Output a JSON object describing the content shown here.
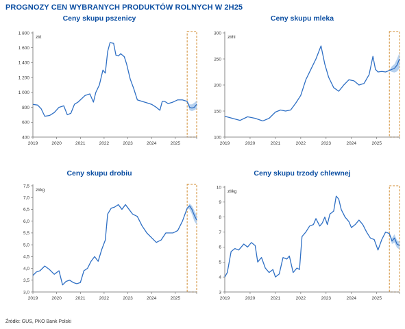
{
  "page": {
    "title": "PROGNOZY CEN WYBRANYCH PRODUKTÓW ROLNYCH W 2H25",
    "source": "Źródło: GUS, PKO Bank Polski"
  },
  "colors": {
    "line": "#2e6fc4",
    "band": "#a9c9ec",
    "forecast_box": "#d08a2e",
    "title": "#0b4ea2",
    "axis": "#666666"
  },
  "chart_data": [
    {
      "type": "line",
      "title": "Ceny skupu pszenicy",
      "unit": "zł/t",
      "xlim": [
        2019.0,
        2025.9
      ],
      "xticks": [
        2019,
        2020,
        2021,
        2022,
        2023,
        2024,
        2025
      ],
      "ylim": [
        400,
        1800
      ],
      "yticks": [
        400,
        600,
        800,
        1000,
        1200,
        1400,
        1600,
        1800
      ],
      "ytick_labels": [
        "400",
        "600",
        "800",
        "1 000",
        "1 200",
        "1 400",
        "1 600",
        "1 800"
      ],
      "forecast_range": [
        2025.5,
        2025.9
      ],
      "x": [
        2019.0,
        2019.2,
        2019.35,
        2019.5,
        2019.7,
        2019.9,
        2020.1,
        2020.3,
        2020.45,
        2020.6,
        2020.75,
        2020.9,
        2021.0,
        2021.2,
        2021.4,
        2021.55,
        2021.65,
        2021.8,
        2021.95,
        2022.05,
        2022.15,
        2022.25,
        2022.4,
        2022.5,
        2022.6,
        2022.7,
        2022.85,
        2022.95,
        2023.1,
        2023.25,
        2023.4,
        2023.6,
        2023.8,
        2024.0,
        2024.2,
        2024.35,
        2024.45,
        2024.55,
        2024.7,
        2024.9,
        2025.1,
        2025.3,
        2025.5
      ],
      "y": [
        840,
        830,
        780,
        680,
        690,
        730,
        800,
        820,
        700,
        720,
        840,
        870,
        900,
        960,
        980,
        870,
        1000,
        1100,
        1300,
        1260,
        1550,
        1670,
        1660,
        1500,
        1490,
        1520,
        1480,
        1380,
        1180,
        1050,
        900,
        880,
        860,
        840,
        800,
        760,
        880,
        880,
        850,
        870,
        900,
        900,
        880
      ],
      "forecast_x": [
        2025.5,
        2025.6,
        2025.7,
        2025.8,
        2025.9
      ],
      "forecast_y": [
        880,
        800,
        790,
        800,
        840
      ],
      "forecast_low": [
        880,
        760,
        750,
        760,
        780
      ],
      "forecast_high": [
        880,
        840,
        840,
        860,
        890
      ]
    },
    {
      "type": "line",
      "title": "Ceny skupu mleka",
      "unit": "zł/hl",
      "xlim": [
        2019.0,
        2025.9
      ],
      "xticks": [
        2019,
        2020,
        2021,
        2022,
        2023,
        2024,
        2025
      ],
      "ylim": [
        100,
        300
      ],
      "yticks": [
        100,
        150,
        200,
        250,
        300
      ],
      "ytick_labels": [
        "100",
        "150",
        "200",
        "250",
        "300"
      ],
      "forecast_range": [
        2025.5,
        2025.9
      ],
      "x": [
        2019.0,
        2019.3,
        2019.6,
        2019.9,
        2020.2,
        2020.5,
        2020.75,
        2021.0,
        2021.2,
        2021.4,
        2021.6,
        2021.8,
        2022.0,
        2022.2,
        2022.4,
        2022.6,
        2022.8,
        2022.95,
        2023.1,
        2023.3,
        2023.5,
        2023.7,
        2023.9,
        2024.1,
        2024.3,
        2024.5,
        2024.7,
        2024.85,
        2024.95,
        2025.05,
        2025.2,
        2025.35,
        2025.5
      ],
      "y": [
        140,
        136,
        132,
        139,
        136,
        131,
        136,
        148,
        152,
        150,
        152,
        165,
        180,
        210,
        230,
        250,
        275,
        240,
        215,
        195,
        188,
        200,
        210,
        208,
        200,
        203,
        220,
        255,
        230,
        225,
        226,
        225,
        228
      ],
      "forecast_x": [
        2025.5,
        2025.6,
        2025.7,
        2025.8,
        2025.9
      ],
      "forecast_y": [
        228,
        230,
        232,
        238,
        250
      ],
      "forecast_low": [
        228,
        225,
        224,
        226,
        232
      ],
      "forecast_high": [
        228,
        236,
        240,
        250,
        262
      ]
    },
    {
      "type": "line",
      "title": "Ceny skupu drobiu",
      "unit": "zł/kg",
      "xlim": [
        2019.0,
        2025.9
      ],
      "xticks": [
        2019,
        2020,
        2021,
        2022,
        2023,
        2024,
        2025
      ],
      "ylim": [
        3.0,
        7.5
      ],
      "yticks": [
        3.0,
        3.5,
        4.0,
        4.5,
        5.0,
        5.5,
        6.0,
        6.5,
        7.0,
        7.5
      ],
      "ytick_labels": [
        "3,0",
        "3,5",
        "4,0",
        "4,5",
        "5,0",
        "5,5",
        "6,0",
        "6,5",
        "7,0",
        "7,5"
      ],
      "forecast_range": [
        2025.5,
        2025.9
      ],
      "x": [
        2019.0,
        2019.15,
        2019.3,
        2019.5,
        2019.7,
        2019.9,
        2020.1,
        2020.25,
        2020.4,
        2020.55,
        2020.7,
        2020.85,
        2021.0,
        2021.15,
        2021.3,
        2021.45,
        2021.6,
        2021.75,
        2021.9,
        2022.05,
        2022.15,
        2022.3,
        2022.45,
        2022.6,
        2022.75,
        2022.9,
        2023.05,
        2023.2,
        2023.4,
        2023.6,
        2023.8,
        2024.0,
        2024.2,
        2024.4,
        2024.6,
        2024.75,
        2024.9,
        2025.1,
        2025.3,
        2025.5
      ],
      "y": [
        3.7,
        3.85,
        3.9,
        4.1,
        3.95,
        3.75,
        3.9,
        3.3,
        3.45,
        3.5,
        3.4,
        3.35,
        3.4,
        3.9,
        4.0,
        4.3,
        4.5,
        4.3,
        4.8,
        5.2,
        6.3,
        6.55,
        6.6,
        6.7,
        6.5,
        6.7,
        6.5,
        6.3,
        6.2,
        5.8,
        5.5,
        5.3,
        5.1,
        5.2,
        5.5,
        5.5,
        5.5,
        5.6,
        6.0,
        6.55
      ],
      "forecast_x": [
        2025.5,
        2025.6,
        2025.7,
        2025.8,
        2025.9
      ],
      "forecast_y": [
        6.55,
        6.65,
        6.5,
        6.25,
        6.05
      ],
      "forecast_low": [
        6.55,
        6.5,
        6.3,
        6.0,
        5.85
      ],
      "forecast_high": [
        6.55,
        6.75,
        6.65,
        6.45,
        6.25
      ]
    },
    {
      "type": "line",
      "title": "Ceny skupu trzody chlewnej",
      "unit": "zł/kg",
      "xlim": [
        2019.0,
        2025.9
      ],
      "xticks": [
        2019,
        2020,
        2021,
        2022,
        2023,
        2024,
        2025
      ],
      "ylim": [
        3,
        10
      ],
      "yticks": [
        3,
        4,
        5,
        6,
        7,
        8,
        9,
        10
      ],
      "ytick_labels": [
        "3",
        "4",
        "5",
        "6",
        "7",
        "8",
        "9",
        "10"
      ],
      "forecast_range": [
        2025.5,
        2025.9
      ],
      "x": [
        2019.0,
        2019.1,
        2019.25,
        2019.4,
        2019.55,
        2019.75,
        2019.9,
        2020.05,
        2020.2,
        2020.3,
        2020.45,
        2020.6,
        2020.75,
        2020.9,
        2021.0,
        2021.15,
        2021.3,
        2021.45,
        2021.55,
        2021.7,
        2021.85,
        2021.95,
        2022.05,
        2022.2,
        2022.35,
        2022.5,
        2022.6,
        2022.75,
        2022.85,
        2022.95,
        2023.05,
        2023.15,
        2023.3,
        2023.4,
        2023.5,
        2023.6,
        2023.75,
        2023.9,
        2024.0,
        2024.15,
        2024.3,
        2024.45,
        2024.6,
        2024.75,
        2024.9,
        2025.05,
        2025.2,
        2025.35,
        2025.5
      ],
      "y": [
        4.0,
        4.3,
        5.7,
        5.9,
        5.8,
        6.2,
        6.0,
        6.3,
        6.1,
        5.0,
        5.3,
        4.6,
        4.3,
        4.5,
        4.0,
        4.2,
        5.3,
        5.2,
        5.4,
        4.3,
        4.6,
        4.5,
        6.7,
        7.0,
        7.4,
        7.5,
        7.9,
        7.4,
        7.6,
        8.0,
        7.5,
        8.2,
        8.4,
        9.4,
        9.2,
        8.5,
        8.0,
        7.7,
        7.3,
        7.5,
        7.8,
        7.5,
        7.0,
        6.6,
        6.5,
        5.8,
        6.5,
        7.0,
        6.9
      ],
      "forecast_x": [
        2025.5,
        2025.6,
        2025.7,
        2025.8,
        2025.9
      ],
      "forecast_y": [
        6.9,
        6.4,
        6.6,
        6.2,
        6.1
      ],
      "forecast_low": [
        6.9,
        6.2,
        6.3,
        5.95,
        5.85
      ],
      "forecast_high": [
        6.9,
        6.6,
        6.85,
        6.45,
        6.35
      ]
    }
  ]
}
